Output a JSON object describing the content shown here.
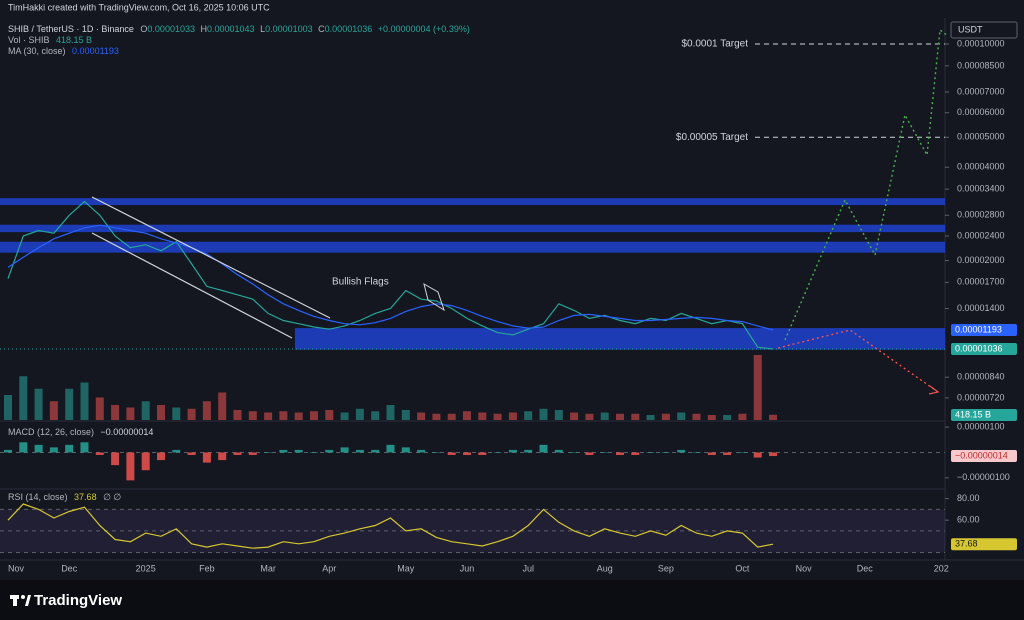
{
  "header": {
    "credit": "TimHakki created with TradingView.com, Oct 16, 2025 10:06 UTC",
    "ohlc": [
      {
        "key": "O",
        "value": "0.00001033"
      },
      {
        "key": "H",
        "value": "0.00001043"
      },
      {
        "key": "L",
        "value": "0.00001003"
      },
      {
        "key": "C"
      }
    ],
    "change": "+0.00000004 (+0.39%)",
    "currency": "USDT"
  },
  "footer": {
    "brand": "TradingView"
  },
  "chart_data": [
    {
      "type": "line",
      "log": true,
      "grid": false,
      "categories": [
        "Nov",
        null,
        null,
        null,
        "Dec",
        null,
        null,
        null,
        null,
        "2025",
        null,
        null,
        null,
        "Feb",
        null,
        null,
        null,
        "Mar",
        null,
        null,
        null,
        "Apr",
        null,
        null,
        null,
        null,
        "May",
        null,
        null,
        null,
        "Jun",
        null,
        null,
        null,
        "Jul",
        null,
        null,
        null,
        null,
        "Aug",
        null,
        null,
        null,
        "Sep",
        null,
        null,
        null,
        null,
        "Oct",
        null,
        null,
        null,
        "Nov",
        null,
        null,
        null,
        "Dec",
        null,
        null,
        null,
        null,
        "202"
      ],
      "series": [
        {
          "name": "SHIB / TetherUS · 1D · Binance",
          "color": "#26a69a",
          "values": [
            1.75e-05,
            2.4e-05,
            2.5e-05,
            2.45e-05,
            2.8e-05,
            3.1e-05,
            2.8e-05,
            2.4e-05,
            2.2e-05,
            2.25e-05,
            2.15e-05,
            2.3e-05,
            1.95e-05,
            1.65e-05,
            1.6e-05,
            1.55e-05,
            1.5e-05,
            1.35e-05,
            1.28e-05,
            1.25e-05,
            1.22e-05,
            1.2e-05,
            1.23e-05,
            1.28e-05,
            1.35e-05,
            1.4e-05,
            1.6e-05,
            1.5e-05,
            1.48e-05,
            1.4e-05,
            1.3e-05,
            1.23e-05,
            1.17e-05,
            1.15e-05,
            1.2e-05,
            1.25e-05,
            1.45e-05,
            1.38e-05,
            1.3e-05,
            1.33e-05,
            1.28e-05,
            1.25e-05,
            1.3e-05,
            1.28e-05,
            1.35e-05,
            1.3e-05,
            1.25e-05,
            1.28e-05,
            1.25e-05,
            1.05e-05,
            1.036e-05,
            null,
            null,
            null,
            null,
            null,
            null,
            null,
            null,
            null,
            null,
            null
          ]
        },
        {
          "name": "MA (30, close)",
          "color": "#2962ff",
          "values": [
            1.9e-05,
            2.05e-05,
            2.2e-05,
            2.35e-05,
            2.45e-05,
            2.55e-05,
            2.6e-05,
            2.55e-05,
            2.5e-05,
            2.45e-05,
            2.35e-05,
            2.28e-05,
            2.2e-05,
            2.1e-05,
            1.95e-05,
            1.8e-05,
            1.68e-05,
            1.55e-05,
            1.45e-05,
            1.38e-05,
            1.32e-05,
            1.28e-05,
            1.25e-05,
            1.24e-05,
            1.26e-05,
            1.3e-05,
            1.37e-05,
            1.42e-05,
            1.45e-05,
            1.43e-05,
            1.38e-05,
            1.32e-05,
            1.27e-05,
            1.23e-05,
            1.21e-05,
            1.22e-05,
            1.28e-05,
            1.33e-05,
            1.34e-05,
            1.32e-05,
            1.3e-05,
            1.28e-05,
            1.28e-05,
            1.29e-05,
            1.3e-05,
            1.31e-05,
            1.3e-05,
            1.28e-05,
            1.27e-05,
            1.23e-05,
            1.193e-05,
            null,
            null,
            null,
            null,
            null,
            null,
            null,
            null,
            null,
            null,
            null
          ]
        }
      ],
      "ylim": [
        6.11e-06,
        0.0001178
      ],
      "yticks": [
        {
          "value": 0.0001,
          "label": "0.00010000"
        },
        {
          "value": 8.5e-05,
          "label": "0.00008500"
        },
        {
          "value": 7e-05,
          "label": "0.00007000"
        },
        {
          "value": 6e-05,
          "label": "0.00006000"
        },
        {
          "value": 5e-05,
          "label": "0.00005000"
        },
        {
          "value": 4e-05,
          "label": "0.00004000"
        },
        {
          "value": 3.4e-05,
          "label": "0.00003400"
        },
        {
          "value": 2.8e-05,
          "label": "0.00002800"
        },
        {
          "value": 2.4e-05,
          "label": "0.00002400"
        },
        {
          "value": 2e-05,
          "label": "0.00002000"
        },
        {
          "value": 1.7e-05,
          "label": "0.00001700"
        },
        {
          "value": 1.4e-05,
          "label": "0.00001400"
        },
        {
          "value": 8.4e-06,
          "label": "0.00000840"
        },
        {
          "value": 7.2e-06,
          "label": "0.00000720"
        }
      ],
      "zones": [
        [
          3.02e-05,
          3.18e-05
        ],
        [
          2.47e-05,
          2.61e-05
        ],
        [
          2.12e-05,
          2.3e-05
        ],
        [
          1.03e-05,
          1.21e-05
        ]
      ],
      "zone_color": "#1e3fc4",
      "annotations": [
        {
          "text": "$0.0001 Target",
          "value": 0.0001
        },
        {
          "text": "$0.00005 Target",
          "value": 5e-05
        },
        {
          "text": "Bullish Flags"
        }
      ]
    },
    {
      "type": "bar",
      "title": "Vol · SHIB",
      "colors": [
        "#26a69a",
        "#ef5350"
      ],
      "values": [
        2000,
        3500,
        2500,
        1500,
        2500,
        3000,
        1800,
        1200,
        1000,
        1500,
        1200,
        1000,
        900,
        1500,
        2200,
        800,
        700,
        600,
        700,
        600,
        700,
        800,
        600,
        900,
        700,
        1200,
        800,
        600,
        500,
        500,
        700,
        600,
        500,
        600,
        700,
        900,
        800,
        600,
        500,
        600,
        500,
        500,
        400,
        500,
        600,
        500,
        400,
        400,
        500,
        5200,
        418.15,
        null,
        null,
        null,
        null,
        null,
        null,
        null,
        null,
        null,
        null,
        null
      ],
      "last_value_label": "418.15 B",
      "ylim": [
        0,
        8000
      ]
    },
    {
      "type": "bar",
      "title": "MACD (12, 26, close)",
      "colors": [
        "#26a69a",
        "#ef5350"
      ],
      "values": [
        1e-07,
        4e-07,
        3e-07,
        2e-07,
        3e-07,
        4e-07,
        -1e-07,
        -5e-07,
        -1.1e-06,
        -7e-07,
        -3e-07,
        1e-07,
        -1e-07,
        -4e-07,
        -3e-07,
        -1e-07,
        -1e-07,
        0,
        1e-07,
        1e-07,
        0,
        1e-07,
        2e-07,
        1e-07,
        1e-07,
        3e-07,
        2e-07,
        1e-07,
        0,
        -1e-07,
        -1e-07,
        -1e-07,
        0,
        1e-07,
        1e-07,
        3e-07,
        1e-07,
        0,
        -1e-07,
        0,
        -1e-07,
        -1e-07,
        0,
        0,
        1e-07,
        0,
        -1e-07,
        -1e-07,
        0,
        -2e-07,
        -1.4e-07,
        null,
        null,
        null,
        null,
        null,
        null,
        null,
        null,
        null,
        null,
        null
      ],
      "last_value_label": "−0.00000014",
      "ylim": [
        -1.4e-06,
        1.2e-06
      ],
      "yticks": [
        {
          "value": 1e-06,
          "label": "0.00000100"
        },
        {
          "value": -1e-06,
          "label": "−0.00000100"
        }
      ]
    },
    {
      "type": "line",
      "title": "RSI (14, close)",
      "extra": "∅ ∅",
      "color": "#d6c730",
      "values": [
        60,
        75,
        70,
        62,
        68,
        72,
        55,
        42,
        40,
        48,
        45,
        52,
        38,
        35,
        38,
        36,
        34,
        35,
        40,
        38,
        40,
        45,
        48,
        52,
        55,
        62,
        50,
        52,
        44,
        40,
        38,
        36,
        40,
        45,
        55,
        70,
        58,
        50,
        45,
        52,
        48,
        45,
        50,
        46,
        55,
        48,
        45,
        50,
        48,
        35,
        37.68,
        null,
        null,
        null,
        null,
        null,
        null,
        null,
        null,
        null,
        null,
        null
      ],
      "ylim": [
        23,
        88
      ],
      "bands": [
        30,
        50,
        70
      ],
      "yticks": [
        {
          "value": 80,
          "label": "80.00"
        },
        {
          "value": 60,
          "label": "60.00"
        }
      ]
    }
  ]
}
